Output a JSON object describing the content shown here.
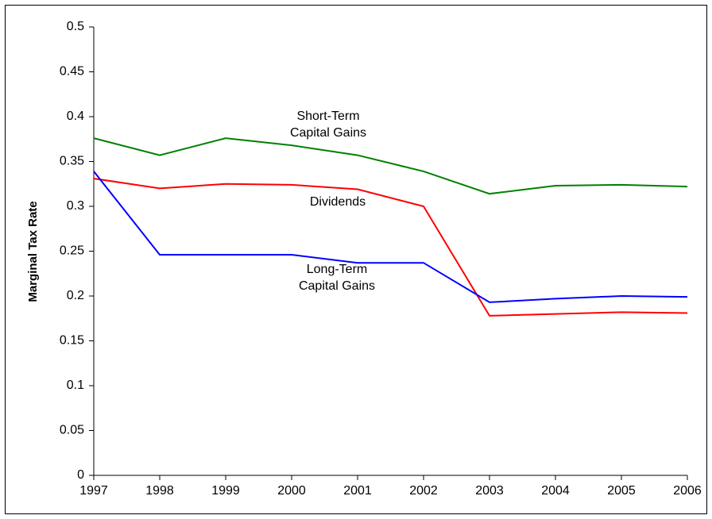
{
  "chart_data": {
    "type": "line",
    "y_label": "Marginal Tax Rate",
    "x": [
      1997,
      1998,
      1999,
      2000,
      2001,
      2002,
      2003,
      2004,
      2005,
      2006
    ],
    "xlim": [
      1997,
      2006
    ],
    "xticks": [
      1997,
      1998,
      1999,
      2000,
      2001,
      2002,
      2003,
      2004,
      2005,
      2006
    ],
    "ylim": [
      0,
      0.5
    ],
    "yticks": [
      0,
      0.05,
      0.1,
      0.15,
      0.2,
      0.25,
      0.3,
      0.35,
      0.4,
      0.45,
      0.5
    ],
    "grid": false,
    "series": [
      {
        "name": "Short-Term Capital Gains",
        "color": "#008000",
        "values": [
          0.376,
          0.357,
          0.376,
          0.368,
          0.357,
          0.339,
          0.314,
          0.323,
          0.324,
          0.322
        ]
      },
      {
        "name": "Dividends",
        "color": "#ff0000",
        "values": [
          0.331,
          0.32,
          0.325,
          0.324,
          0.319,
          0.3,
          0.178,
          0.18,
          0.182,
          0.181
        ]
      },
      {
        "name": "Long-Term Capital Gains",
        "color": "#0000ff",
        "values": [
          0.339,
          0.246,
          0.246,
          0.246,
          0.237,
          0.237,
          0.193,
          0.197,
          0.2,
          0.199
        ]
      }
    ]
  }
}
